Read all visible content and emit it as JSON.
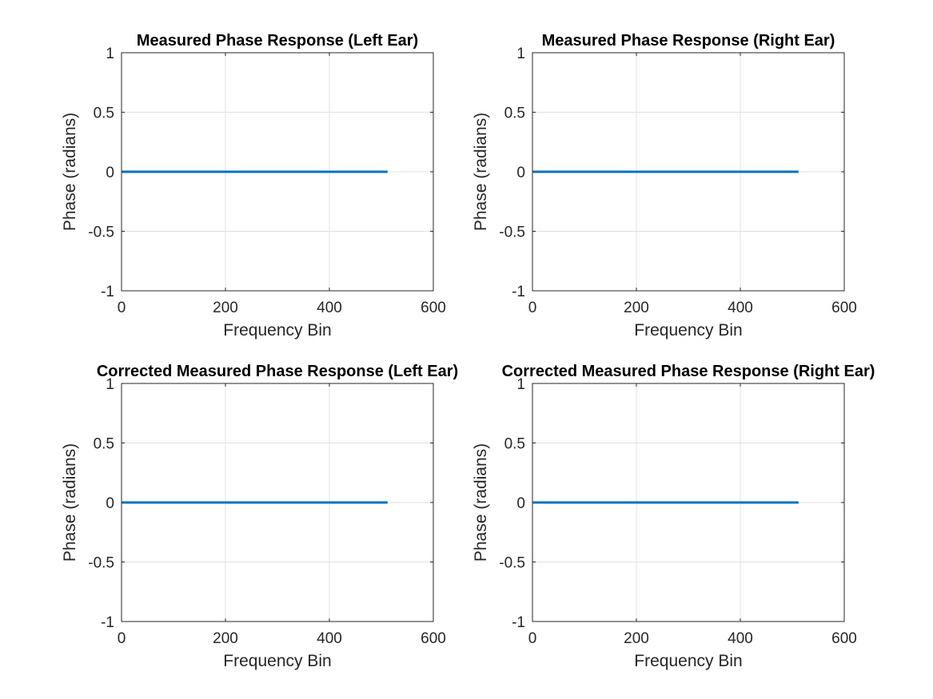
{
  "figure": {
    "background": "#ffffff",
    "grid_color": "#e0e0e0",
    "axis_color": "#262626",
    "line_color": "#0072BD"
  },
  "chart_data": [
    {
      "type": "line",
      "title": "Measured Phase Response (Left Ear)",
      "xlabel": "Frequency Bin",
      "ylabel": "Phase (radians)",
      "xlim": [
        0,
        600
      ],
      "ylim": [
        -1,
        1
      ],
      "xticks": [
        0,
        200,
        400,
        600
      ],
      "yticks": [
        -1,
        -0.5,
        0,
        0.5,
        1
      ],
      "grid": true,
      "series": [
        {
          "x": [
            1,
            512
          ],
          "y": [
            0,
            0
          ]
        }
      ]
    },
    {
      "type": "line",
      "title": "Measured Phase Response (Right Ear)",
      "xlabel": "Frequency Bin",
      "ylabel": "Phase (radians)",
      "xlim": [
        0,
        600
      ],
      "ylim": [
        -1,
        1
      ],
      "xticks": [
        0,
        200,
        400,
        600
      ],
      "yticks": [
        -1,
        -0.5,
        0,
        0.5,
        1
      ],
      "grid": true,
      "series": [
        {
          "x": [
            1,
            512
          ],
          "y": [
            0,
            0
          ]
        }
      ]
    },
    {
      "type": "line",
      "title": "Corrected Measured Phase Response (Left Ear)",
      "xlabel": "Frequency Bin",
      "ylabel": "Phase (radians)",
      "xlim": [
        0,
        600
      ],
      "ylim": [
        -1,
        1
      ],
      "xticks": [
        0,
        200,
        400,
        600
      ],
      "yticks": [
        -1,
        -0.5,
        0,
        0.5,
        1
      ],
      "grid": true,
      "series": [
        {
          "x": [
            1,
            512
          ],
          "y": [
            0,
            0
          ]
        }
      ]
    },
    {
      "type": "line",
      "title": "Corrected Measured Phase Response (Right Ear)",
      "xlabel": "Frequency Bin",
      "ylabel": "Phase (radians)",
      "xlim": [
        0,
        600
      ],
      "ylim": [
        -1,
        1
      ],
      "xticks": [
        0,
        200,
        400,
        600
      ],
      "yticks": [
        -1,
        -0.5,
        0,
        0.5,
        1
      ],
      "grid": true,
      "series": [
        {
          "x": [
            1,
            512
          ],
          "y": [
            0,
            0
          ]
        }
      ]
    }
  ]
}
